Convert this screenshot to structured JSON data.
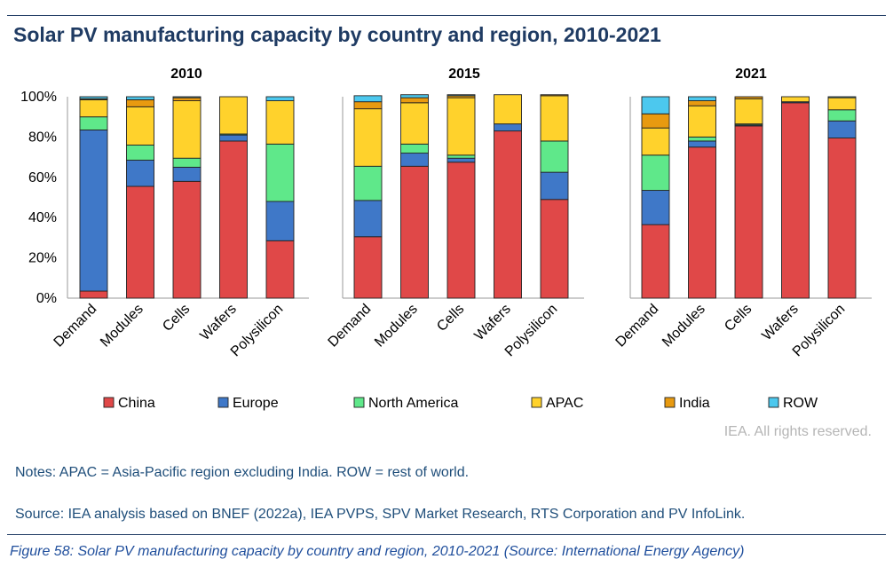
{
  "title": "Solar PV manufacturing capacity by country and region, 2010-2021",
  "rights": "IEA. All rights reserved.",
  "notes": "Notes: APAC = Asia-Pacific region excluding India. ROW = rest of world.",
  "source": "Source: IEA analysis based on BNEF (2022a), IEA PVPS, SPV Market Research, RTS Corporation and PV InfoLink.",
  "caption": "Figure 58: Solar PV manufacturing capacity by country and region, 2010-2021 (Source: International Energy Agency)",
  "chart_data": {
    "type": "bar",
    "stacked": true,
    "ylim": [
      0,
      100
    ],
    "yticks": [
      "0%",
      "20%",
      "40%",
      "60%",
      "80%",
      "100%"
    ],
    "categories": [
      "Demand",
      "Modules",
      "Cells",
      "Wafers",
      "Polysilicon"
    ],
    "series_names": [
      "China",
      "Europe",
      "North America",
      "APAC",
      "India",
      "ROW"
    ],
    "colors": [
      "#e04848",
      "#3f78c8",
      "#5fe88a",
      "#ffd22c",
      "#e89a10",
      "#4cc8ee"
    ],
    "legend_position": "bottom",
    "panels": [
      {
        "title": "2010",
        "series": [
          {
            "name": "China",
            "values": [
              3.5,
              55.5,
              58,
              78,
              28.5
            ]
          },
          {
            "name": "Europe",
            "values": [
              80,
              13,
              7,
              3,
              19.5
            ]
          },
          {
            "name": "North America",
            "values": [
              6.5,
              7.5,
              4.5,
              0.5,
              28.5
            ]
          },
          {
            "name": "APAC",
            "values": [
              8.5,
              19,
              28.5,
              18.5,
              21.5
            ]
          },
          {
            "name": "India",
            "values": [
              0.5,
              3.5,
              1.5,
              0,
              0
            ]
          },
          {
            "name": "ROW",
            "values": [
              1,
              1.5,
              0.5,
              0,
              2
            ]
          }
        ]
      },
      {
        "title": "2015",
        "series": [
          {
            "name": "China",
            "values": [
              30.5,
              65.5,
              67.5,
              83,
              49
            ]
          },
          {
            "name": "Europe",
            "values": [
              18,
              6.5,
              2,
              3.5,
              13.5
            ]
          },
          {
            "name": "North America",
            "values": [
              17,
              4.5,
              1.5,
              0,
              15.5
            ]
          },
          {
            "name": "APAC",
            "values": [
              28.5,
              20.5,
              28.5,
              14.5,
              22.5
            ]
          },
          {
            "name": "India",
            "values": [
              3.5,
              2.5,
              1,
              0,
              0.5
            ]
          },
          {
            "name": "ROW",
            "values": [
              3,
              1.5,
              0.5,
              0,
              0
            ]
          }
        ]
      },
      {
        "title": "2021",
        "series": [
          {
            "name": "China",
            "values": [
              36.5,
              75,
              85.5,
              97,
              79.5
            ]
          },
          {
            "name": "Europe",
            "values": [
              17,
              3,
              0.5,
              0.5,
              8.5
            ]
          },
          {
            "name": "North America",
            "values": [
              17.5,
              2,
              0.5,
              0,
              5.5
            ]
          },
          {
            "name": "APAC",
            "values": [
              13.5,
              15.5,
              12.5,
              2.5,
              6
            ]
          },
          {
            "name": "India",
            "values": [
              7,
              2.5,
              1,
              0,
              0
            ]
          },
          {
            "name": "ROW",
            "values": [
              8.5,
              2,
              0,
              0,
              0.5
            ]
          }
        ]
      }
    ]
  }
}
